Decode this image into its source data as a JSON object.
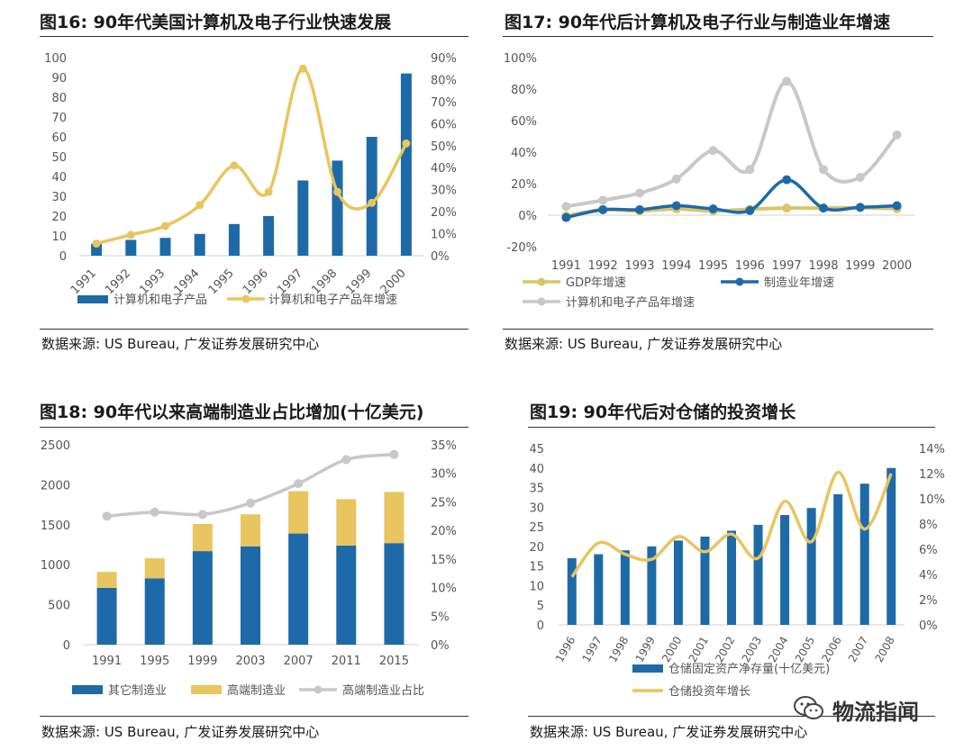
{
  "colors": {
    "blue": "#1e6aa8",
    "yellow": "#e8c55e",
    "gold": "#d8c668",
    "gray": "#c8c8c8",
    "axis": "#d0d0d0",
    "text": "#555555"
  },
  "watermark": {
    "text": "物流指闻",
    "icon": "wechat-icon"
  },
  "chart_data": [
    {
      "id": "fig16",
      "type": "bar+line",
      "title": "图16: 90年代美国计算机及电子行业快速发展",
      "source": "数据来源: US Bureau, 广发证券发展研究中心",
      "categories": [
        "1991",
        "1992",
        "1993",
        "1994",
        "1995",
        "1996",
        "1997",
        "1998",
        "1999",
        "2000"
      ],
      "left_axis": {
        "min": 0,
        "max": 100,
        "ticks": [
          "0",
          "10",
          "20",
          "30",
          "40",
          "50",
          "60",
          "70",
          "80",
          "90",
          "100"
        ]
      },
      "right_axis": {
        "min": 0,
        "max": 90,
        "ticks": [
          "0%",
          "10%",
          "20%",
          "30%",
          "40%",
          "50%",
          "60%",
          "70%",
          "80%",
          "90%"
        ]
      },
      "series": [
        {
          "name": "计算机和电子产品",
          "type": "bar",
          "axis": "left",
          "values": [
            6,
            8,
            9,
            11,
            16,
            20,
            38,
            48,
            60,
            92
          ]
        },
        {
          "name": "计算机和电子产品年增速",
          "type": "line",
          "axis": "right",
          "values": [
            5.5,
            9.5,
            13.5,
            23,
            41,
            29,
            85,
            29,
            24,
            51
          ]
        }
      ],
      "legend_position": "bottom",
      "xtick_rotation": "rotated"
    },
    {
      "id": "fig17",
      "type": "line",
      "title": "图17: 90年代后计算机及电子行业与制造业年增速",
      "source": "数据来源: US Bureau, 广发证券发展研究中心",
      "categories": [
        "1991",
        "1992",
        "1993",
        "1994",
        "1995",
        "1996",
        "1997",
        "1998",
        "1999",
        "2000"
      ],
      "axis": {
        "min": -20,
        "max": 100,
        "ticks": [
          "-20%",
          "0%",
          "20%",
          "40%",
          "60%",
          "80%",
          "100%"
        ]
      },
      "series": [
        {
          "name": "GDP年增速",
          "values": [
            -0.5,
            3.5,
            2.7,
            4.0,
            2.7,
            3.8,
            4.5,
            4.5,
            4.8,
            4.1
          ]
        },
        {
          "name": "制造业年增速",
          "values": [
            -1.5,
            3.5,
            3.5,
            6.0,
            4.0,
            3.0,
            22.5,
            4.5,
            5.0,
            6.0
          ]
        },
        {
          "name": "计算机和电子产品年增速",
          "values": [
            5.5,
            9.5,
            14,
            23,
            41,
            29,
            85,
            29,
            24,
            51
          ]
        }
      ],
      "legend_position": "bottom"
    },
    {
      "id": "fig18",
      "type": "stacked-bar+line",
      "title": "图18: 90年代以来高端制造业占比增加(十亿美元)",
      "source": "数据来源: US Bureau, 广发证券发展研究中心",
      "categories": [
        "1991",
        "1995",
        "1999",
        "2003",
        "2007",
        "2011",
        "2015"
      ],
      "left_axis": {
        "min": 0,
        "max": 2500,
        "ticks": [
          "0",
          "500",
          "1000",
          "1500",
          "2000",
          "2500"
        ]
      },
      "right_axis": {
        "min": 0,
        "max": 35,
        "ticks": [
          "0%",
          "5%",
          "10%",
          "15%",
          "20%",
          "25%",
          "30%",
          "35%"
        ]
      },
      "series": [
        {
          "name": "其它制造业",
          "type": "bar",
          "axis": "left",
          "values": [
            710,
            830,
            1170,
            1230,
            1390,
            1240,
            1270
          ]
        },
        {
          "name": "高端制造业",
          "type": "bar",
          "axis": "left",
          "values": [
            200,
            250,
            340,
            400,
            530,
            580,
            640
          ]
        },
        {
          "name": "高端制造业占比",
          "type": "line",
          "axis": "right",
          "values": [
            22.5,
            23.2,
            22.8,
            24.8,
            28.2,
            32.4,
            33.3
          ]
        }
      ],
      "legend_position": "bottom"
    },
    {
      "id": "fig19",
      "type": "bar+line",
      "title": "图19: 90年代后对仓储的投资增长",
      "source": "数据来源: US Bureau, 广发证券发展研究中心",
      "categories": [
        "1996",
        "1997",
        "1998",
        "1999",
        "2000",
        "2001",
        "2002",
        "2003",
        "2004",
        "2005",
        "2006",
        "2007",
        "2008"
      ],
      "left_axis": {
        "min": 0,
        "max": 45,
        "ticks": [
          "0",
          "5",
          "10",
          "15",
          "20",
          "25",
          "30",
          "35",
          "40",
          "45"
        ]
      },
      "right_axis": {
        "min": 0,
        "max": 14,
        "ticks": [
          "0%",
          "2%",
          "4%",
          "6%",
          "8%",
          "10%",
          "12%",
          "14%"
        ]
      },
      "series": [
        {
          "name": "仓储固定资产净存量(十亿美元)",
          "type": "bar",
          "axis": "left",
          "values": [
            17,
            18,
            19,
            20,
            21.5,
            22.5,
            24,
            25.5,
            28,
            29.8,
            33.3,
            36,
            40
          ]
        },
        {
          "name": "仓储投资年增长",
          "type": "line",
          "axis": "right",
          "values": [
            3.8,
            6.5,
            5.6,
            5.2,
            7.0,
            5.8,
            7.2,
            5.3,
            9.8,
            6.6,
            12.1,
            7.6,
            12.0
          ]
        }
      ],
      "legend_position": "bottom",
      "xtick_rotation": "rotated"
    }
  ]
}
